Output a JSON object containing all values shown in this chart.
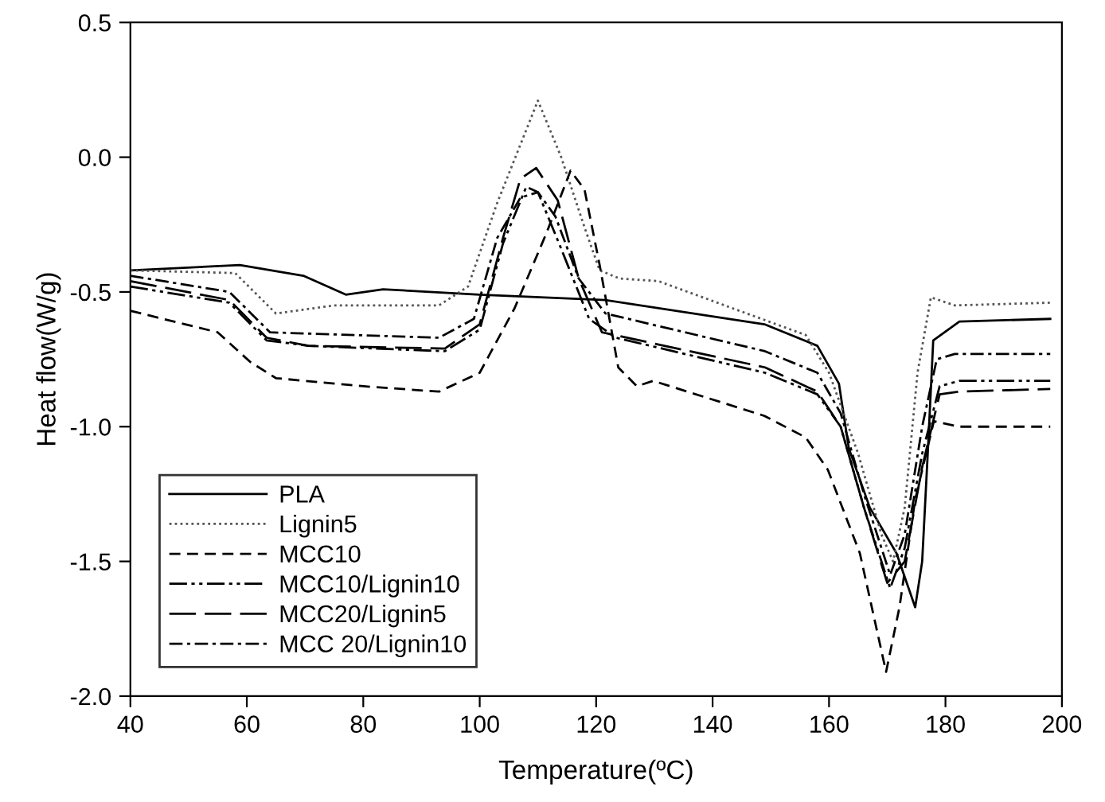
{
  "chart_data": {
    "type": "line",
    "xlabel": "Temperature(ºC)",
    "ylabel": "Heat flow(W/g)",
    "xlim": [
      40,
      200
    ],
    "xticks": [
      40,
      60,
      80,
      100,
      120,
      140,
      160,
      180,
      200
    ],
    "ylim": [
      -2.0,
      0.5
    ],
    "yticks": [
      {
        "value": -2.0,
        "label": "-2.0"
      },
      {
        "value": -1.5,
        "label": "-1.5"
      },
      {
        "value": -1.0,
        "label": "-1.0"
      },
      {
        "value": -0.5,
        "label": "-0.5"
      },
      {
        "value": 0.0,
        "label": "0.0"
      },
      {
        "value": 0.5,
        "label": "0.5"
      }
    ],
    "grid": false,
    "legend": "bottom left",
    "marker": "none",
    "series": [
      {
        "name": "PLA",
        "color": "#000000",
        "line_style": "solid",
        "x": [
          40,
          58.8,
          69.7,
          77,
          83.4,
          100,
          121.6,
          148.9,
          158,
          161.7,
          163.4,
          167,
          171.6,
          174.8,
          176,
          177,
          177.9,
          182.4,
          198
        ],
        "values": [
          -0.42,
          -0.4,
          -0.44,
          -0.51,
          -0.49,
          -0.51,
          -0.53,
          -0.62,
          -0.7,
          -0.84,
          -1.08,
          -1.3,
          -1.47,
          -1.67,
          -1.5,
          -1.08,
          -0.68,
          -0.61,
          -0.6
        ]
      },
      {
        "name": "Lignin5",
        "color": "#555555",
        "line_style": "dotted",
        "x": [
          40,
          58,
          65,
          75,
          93,
          98,
          103,
          110,
          114,
          118,
          120.6,
          124,
          130.7,
          156,
          160,
          165,
          169,
          171,
          173,
          175.2,
          177.5,
          181.6,
          198
        ],
        "values": [
          -0.42,
          -0.43,
          -0.58,
          -0.55,
          -0.55,
          -0.48,
          -0.17,
          0.21,
          0.0,
          -0.26,
          -0.42,
          -0.45,
          -0.46,
          -0.66,
          -0.8,
          -1.1,
          -1.4,
          -1.5,
          -1.3,
          -0.8,
          -0.52,
          -0.55,
          -0.54
        ]
      },
      {
        "name": "MCC10",
        "color": "#000000",
        "line_style": "dashed",
        "x": [
          40,
          55,
          60.6,
          65,
          80,
          93,
          100,
          106,
          111.5,
          115.6,
          118,
          120.6,
          123.8,
          127,
          129.8,
          148.9,
          156,
          159.8,
          165.3,
          169.8,
          172.1,
          174.8,
          178,
          182.4,
          198
        ],
        "values": [
          -0.57,
          -0.65,
          -0.76,
          -0.82,
          -0.85,
          -0.87,
          -0.8,
          -0.56,
          -0.28,
          -0.05,
          -0.12,
          -0.4,
          -0.78,
          -0.85,
          -0.83,
          -0.96,
          -1.04,
          -1.16,
          -1.47,
          -1.91,
          -1.67,
          -1.27,
          -0.98,
          -1.0,
          -1.0
        ]
      },
      {
        "name": "MCC10/Lignin10",
        "color": "#000000",
        "line_style": "dashdotdot",
        "x": [
          40,
          57,
          63.4,
          70.6,
          94,
          100,
          104,
          108,
          110,
          114,
          118.8,
          123.4,
          149,
          158,
          162,
          166,
          170.5,
          173,
          176,
          179,
          182.4,
          198
        ],
        "values": [
          -0.48,
          -0.54,
          -0.68,
          -0.7,
          -0.72,
          -0.64,
          -0.32,
          -0.11,
          -0.13,
          -0.34,
          -0.6,
          -0.67,
          -0.8,
          -0.88,
          -1.0,
          -1.3,
          -1.6,
          -1.45,
          -1.1,
          -0.85,
          -0.83,
          -0.83
        ]
      },
      {
        "name": "MCC20/Lignin5",
        "color": "#000000",
        "line_style": "longdash",
        "x": [
          40,
          57,
          63.4,
          70.6,
          94,
          100,
          104,
          107,
          109.7,
          113.4,
          117,
          121,
          149,
          158,
          162,
          166,
          170,
          173,
          176,
          179,
          182.4,
          198
        ],
        "values": [
          -0.46,
          -0.53,
          -0.67,
          -0.7,
          -0.71,
          -0.62,
          -0.3,
          -0.08,
          -0.04,
          -0.16,
          -0.45,
          -0.65,
          -0.78,
          -0.87,
          -1.0,
          -1.3,
          -1.58,
          -1.5,
          -1.15,
          -0.88,
          -0.87,
          -0.86
        ]
      },
      {
        "name": "MCC 20/Lignin10",
        "color": "#000000",
        "line_style": "dashdot",
        "x": [
          40,
          57,
          64,
          93,
          99,
          103,
          107,
          110,
          113,
          117,
          121.6,
          149,
          158,
          162,
          166,
          170.5,
          173,
          176,
          178.5,
          181.6,
          198
        ],
        "values": [
          -0.44,
          -0.5,
          -0.65,
          -0.67,
          -0.6,
          -0.3,
          -0.15,
          -0.13,
          -0.22,
          -0.45,
          -0.58,
          -0.72,
          -0.8,
          -0.95,
          -1.25,
          -1.55,
          -1.4,
          -1.0,
          -0.75,
          -0.73,
          -0.73
        ]
      }
    ]
  }
}
